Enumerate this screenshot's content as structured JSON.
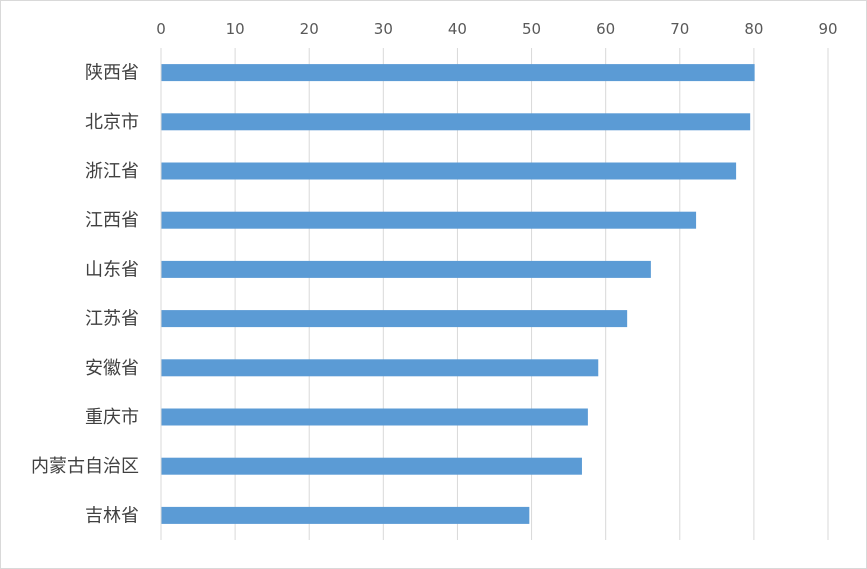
{
  "chart_data": {
    "type": "bar",
    "orientation": "horizontal",
    "title": "",
    "xlabel": "",
    "ylabel": "",
    "xlim": [
      0,
      90
    ],
    "ticks": [
      "0",
      "10",
      "20",
      "30",
      "40",
      "50",
      "60",
      "70",
      "80",
      "90"
    ],
    "tick_values": [
      0,
      10,
      20,
      30,
      40,
      50,
      60,
      70,
      80,
      90
    ],
    "x_axis_position": "top",
    "grid": "vertical",
    "legend": false,
    "color": "#5b9bd5",
    "grid_color": "#d9d9d9",
    "categories": [
      "陕西省",
      "北京市",
      "浙江省",
      "江西省",
      "山东省",
      "江苏省",
      "安徽省",
      "重庆市",
      "内蒙古自治区",
      "吉林省"
    ],
    "values": [
      80.1,
      79.5,
      77.6,
      72.2,
      66.1,
      62.9,
      59.0,
      57.6,
      56.8,
      49.7
    ]
  }
}
